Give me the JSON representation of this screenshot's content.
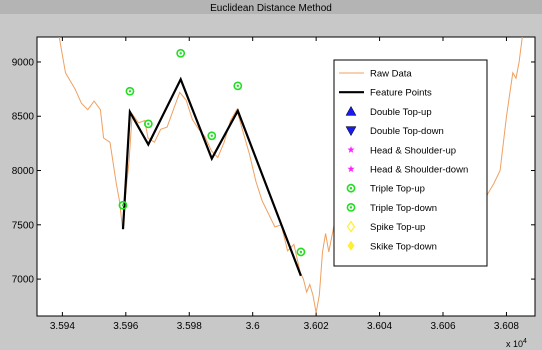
{
  "chart_data": {
    "type": "line",
    "title": "Euclidean Distance Method",
    "xlabel": "",
    "ylabel": "",
    "x_exponent_label": "x 10",
    "x_exponent_power": "4",
    "xlim": [
      35.932,
      36.089
    ],
    "ylim": [
      6660,
      9230
    ],
    "x_ticks": [
      35.94,
      35.96,
      35.98,
      36.0,
      36.02,
      36.04,
      36.06,
      36.08
    ],
    "x_tick_labels": [
      "3.594",
      "3.596",
      "3.598",
      "3.6",
      "3.602",
      "3.604",
      "3.606",
      "3.608"
    ],
    "y_ticks": [
      7000,
      7500,
      8000,
      8500,
      9000
    ],
    "y_tick_labels": [
      "7000",
      "7500",
      "8000",
      "8500",
      "9000"
    ],
    "grid": false,
    "legend_position": "right",
    "series": [
      {
        "name": "Raw Data",
        "kind": "line",
        "color": "#f0a060",
        "x": [
          35.939,
          35.941,
          35.942,
          35.944,
          35.946,
          35.948,
          35.95,
          35.952,
          35.953,
          35.955,
          35.957,
          35.958,
          35.959,
          35.96,
          35.961,
          35.962,
          35.964,
          35.966,
          35.967,
          35.969,
          35.971,
          35.973,
          35.975,
          35.977,
          35.979,
          35.981,
          35.983,
          35.985,
          35.987,
          35.989,
          35.991,
          35.993,
          35.995,
          35.997,
          35.999,
          36.001,
          36.003,
          36.005,
          36.007,
          36.009,
          36.011,
          36.013,
          36.015,
          36.016,
          36.017,
          36.018,
          36.019,
          36.02,
          36.021,
          36.022,
          36.023,
          36.024,
          36.026,
          36.028,
          36.03,
          36.032,
          36.034,
          36.036,
          36.038,
          36.04,
          36.042,
          36.044,
          36.046,
          36.048,
          36.05,
          36.052,
          36.054,
          36.056,
          36.058,
          36.06,
          36.062,
          36.064,
          36.066,
          36.068,
          36.07,
          36.072,
          36.074,
          36.076,
          36.078,
          36.08,
          36.082,
          36.083,
          36.084,
          36.085
        ],
        "y": [
          9230,
          8900,
          8850,
          8750,
          8620,
          8560,
          8640,
          8560,
          8300,
          8260,
          7880,
          7720,
          7460,
          7800,
          8080,
          8520,
          8440,
          8460,
          8300,
          8260,
          8380,
          8400,
          8560,
          8720,
          8650,
          8470,
          8380,
          8310,
          8180,
          8120,
          8260,
          8460,
          8560,
          8350,
          8150,
          7900,
          7720,
          7600,
          7480,
          7500,
          7260,
          7320,
          7060,
          7000,
          6880,
          6950,
          6850,
          6690,
          6850,
          7250,
          7420,
          7250,
          7550,
          7420,
          7650,
          7500,
          7620,
          7700,
          7750,
          7500,
          7520,
          7720,
          7620,
          7880,
          7820,
          7720,
          7900,
          7850,
          7780,
          7700,
          7650,
          7720,
          7780,
          7640,
          7560,
          7580,
          7780,
          7880,
          8000,
          8500,
          8900,
          8850,
          9000,
          9230
        ]
      },
      {
        "name": "Feature Points",
        "kind": "line",
        "color": "#000000",
        "x": [
          35.9591,
          35.9613,
          35.9671,
          35.9773,
          35.9871,
          35.9953,
          36.0152
        ],
        "y": [
          7460,
          8540,
          8240,
          8840,
          8110,
          8550,
          7030
        ]
      },
      {
        "name": "Triple Top-up",
        "kind": "marker",
        "color": "#22dd22",
        "x": [
          35.9613,
          35.9773,
          35.9953
        ],
        "y": [
          8730,
          9080,
          8780
        ]
      },
      {
        "name": "Triple Top-down",
        "kind": "marker",
        "color": "#22dd22",
        "x": [
          35.9591,
          35.9671,
          35.9871,
          36.0152
        ],
        "y": [
          7680,
          8430,
          8320,
          7250
        ]
      }
    ],
    "legend_entries": [
      {
        "label": "Raw Data",
        "symbol": "line",
        "color": "#f0a060"
      },
      {
        "label": "Feature Points",
        "symbol": "thickline",
        "color": "#000000"
      },
      {
        "label": "Double Top-up",
        "symbol": "triangle-up",
        "color": "#1a1aee"
      },
      {
        "label": "Double Top-down",
        "symbol": "triangle-down",
        "color": "#1a1aee"
      },
      {
        "label": "Head & Shoulder-up",
        "symbol": "star",
        "color": "#ff22ff"
      },
      {
        "label": "Head & Shoulder-down",
        "symbol": "star",
        "color": "#ff22ff"
      },
      {
        "label": "Triple Top-up",
        "symbol": "circle",
        "color": "#22dd22"
      },
      {
        "label": "Triple Top-down",
        "symbol": "circle",
        "color": "#22dd22"
      },
      {
        "label": "Spike Top-up",
        "symbol": "diamond-open",
        "color": "#ffee33"
      },
      {
        "label": "Skike Top-down",
        "symbol": "diamond",
        "color": "#ffee33"
      }
    ]
  }
}
